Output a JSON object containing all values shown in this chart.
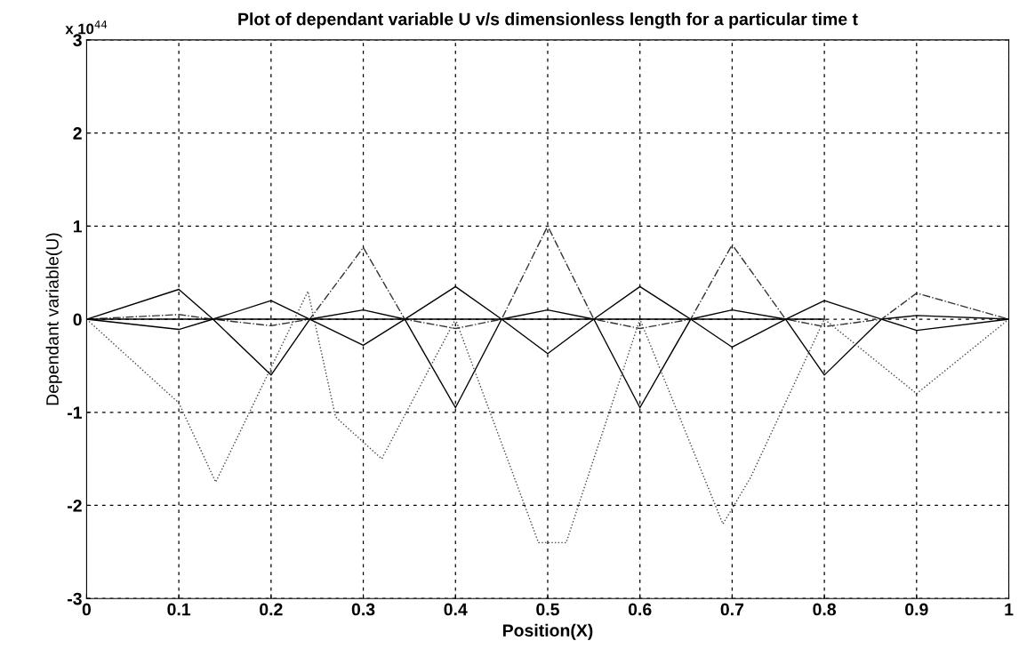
{
  "chart_data": {
    "type": "line",
    "title": "Plot of dependant variable U v/s dimensionless length for a particular time t",
    "xlabel": "Position(X)",
    "ylabel": "Dependant variable(U)",
    "annotations": [
      "x 10$^{44}$"
    ],
    "series": [
      {
        "color": "#000000",
        "line_style": "solid",
        "x": [
          0,
          0.1,
          0.137,
          0.2,
          0.242,
          0.3,
          0.345,
          0.4,
          0.45,
          0.5,
          0.55,
          0.6,
          0.655,
          0.7,
          0.758,
          0.8,
          0.862,
          0.9,
          1
        ],
        "values": [
          0,
          0.32,
          0,
          -0.6,
          0,
          -0.28,
          0,
          0.35,
          0,
          -0.37,
          0,
          0.35,
          0,
          -0.3,
          0,
          0.2,
          0,
          0.04,
          0
        ]
      },
      {
        "color": "#000000",
        "line_style": "solid",
        "x": [
          0,
          0.1,
          0.137,
          0.2,
          0.242,
          0.3,
          0.345,
          0.4,
          0.45,
          0.5,
          0.55,
          0.6,
          0.655,
          0.7,
          0.758,
          0.8,
          0.862,
          0.9,
          1
        ],
        "values": [
          0,
          -0.11,
          0,
          0.2,
          0,
          0.1,
          0,
          -0.95,
          0,
          0.1,
          0,
          -0.95,
          0,
          0.1,
          0,
          -0.6,
          0,
          -0.12,
          0
        ]
      },
      {
        "color": "#333333",
        "line_style": "dashdot",
        "x": [
          0,
          0.1,
          0.137,
          0.2,
          0.242,
          0.3,
          0.345,
          0.4,
          0.45,
          0.5,
          0.55,
          0.6,
          0.655,
          0.7,
          0.758,
          0.8,
          0.862,
          0.9,
          1
        ],
        "values": [
          0,
          0.05,
          0,
          -0.07,
          0,
          0.77,
          0,
          -0.1,
          0,
          1.0,
          0,
          -0.1,
          0,
          0.8,
          0,
          -0.08,
          0,
          0.28,
          0
        ]
      },
      {
        "color": "#444444",
        "line_style": "dotted",
        "x": [
          0,
          0.1,
          0.14,
          0.24,
          0.27,
          0.32,
          0.4,
          0.49,
          0.52,
          0.6,
          0.69,
          0.72,
          0.8,
          0.9,
          1
        ],
        "values": [
          0,
          -0.9,
          -1.75,
          0.3,
          -1.05,
          -1.5,
          0,
          -2.4,
          -2.4,
          0,
          -2.2,
          -1.7,
          0,
          -0.8,
          0
        ]
      },
      {
        "color": "#000000",
        "line_style": "solid",
        "x": [
          0,
          0.8
        ],
        "values": [
          0,
          0
        ]
      }
    ],
    "xlim": [
      0,
      1
    ],
    "xticks": [
      0,
      0.1,
      0.2,
      0.3,
      0.4,
      0.5,
      0.6,
      0.7,
      0.8,
      0.9,
      1
    ],
    "ylim": [
      -3,
      3
    ],
    "yticks": [
      -3,
      -2,
      -1,
      0,
      1,
      2,
      3
    ],
    "grid": true,
    "legend": false,
    "marker": "none"
  }
}
